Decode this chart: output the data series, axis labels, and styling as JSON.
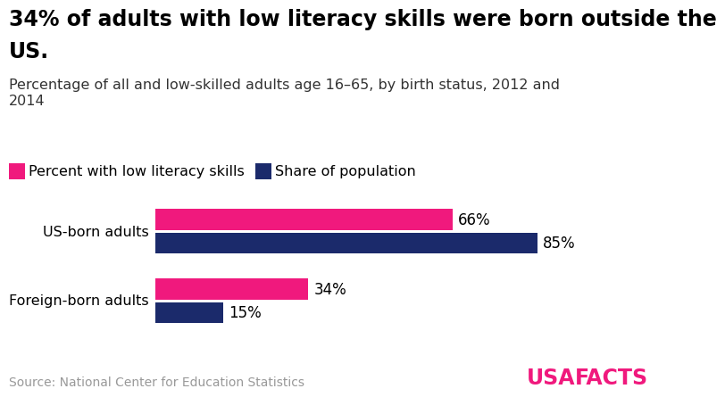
{
  "title_line1": "34% of adults with low literacy skills were born outside the",
  "title_line2": "US.",
  "subtitle": "Percentage of all and low-skilled adults age 16–65, by birth status, 2012 and\n2014",
  "categories": [
    "US-born adults",
    "Foreign-born adults"
  ],
  "literacy_values": [
    66,
    34
  ],
  "population_values": [
    85,
    15
  ],
  "literacy_color": "#F0197D",
  "population_color": "#1B2A6B",
  "literacy_label": "Percent with low literacy skills",
  "population_label": "Share of population",
  "source": "Source: National Center for Education Statistics",
  "usafacts_usa": "USA",
  "usafacts_facts": "FACTS",
  "usafacts_color": "#F0197D",
  "source_color": "#999999",
  "bar_height": 0.3,
  "xlim": [
    0,
    105
  ],
  "title_fontsize": 17,
  "subtitle_fontsize": 11.5,
  "label_fontsize": 11.5,
  "legend_fontsize": 11.5,
  "value_fontsize": 12,
  "source_fontsize": 10,
  "background_color": "#FFFFFF"
}
